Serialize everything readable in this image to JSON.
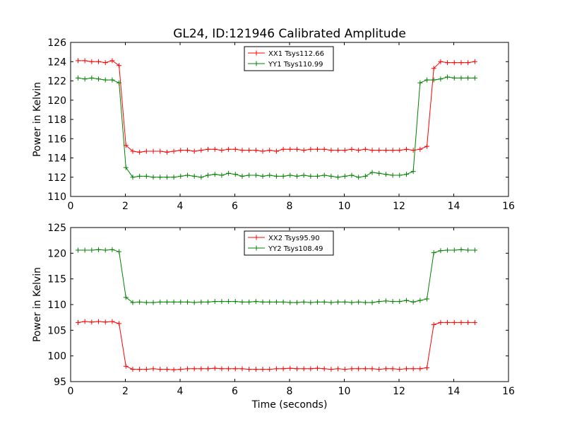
{
  "chart_data": [
    {
      "type": "line",
      "title": "GL24, ID:121946 Calibrated Amplitude",
      "xlabel": "",
      "ylabel": "Power in Kelvin",
      "xlim": [
        0,
        16
      ],
      "ylim": [
        110,
        126
      ],
      "xticks": [
        "0",
        "2",
        "4",
        "6",
        "8",
        "10",
        "12",
        "14",
        "16"
      ],
      "yticks": [
        "110",
        "112",
        "114",
        "116",
        "118",
        "120",
        "122",
        "124",
        "126"
      ],
      "legend_position": "top-center",
      "grid": false,
      "x": [
        0.27,
        0.52,
        0.77,
        1.02,
        1.27,
        1.52,
        1.77,
        2.02,
        2.27,
        2.52,
        2.77,
        3.02,
        3.27,
        3.52,
        3.77,
        4.02,
        4.27,
        4.52,
        4.77,
        5.02,
        5.27,
        5.52,
        5.77,
        6.02,
        6.27,
        6.52,
        6.77,
        7.02,
        7.27,
        7.52,
        7.77,
        8.02,
        8.27,
        8.52,
        8.77,
        9.02,
        9.27,
        9.52,
        9.77,
        10.02,
        10.27,
        10.52,
        10.77,
        11.02,
        11.27,
        11.52,
        11.77,
        12.02,
        12.27,
        12.52,
        12.77,
        13.02,
        13.27,
        13.52,
        13.77,
        14.02,
        14.27,
        14.52,
        14.77
      ],
      "series": [
        {
          "name": "XX1 Tsys112.66",
          "color": "#ff0000",
          "values": [
            124.1,
            124.1,
            124.0,
            124.0,
            123.9,
            124.1,
            123.6,
            115.3,
            114.7,
            114.6,
            114.7,
            114.7,
            114.7,
            114.6,
            114.7,
            114.8,
            114.8,
            114.7,
            114.8,
            114.9,
            114.9,
            114.8,
            114.9,
            114.9,
            114.8,
            114.8,
            114.8,
            114.7,
            114.8,
            114.7,
            114.9,
            114.9,
            114.9,
            114.8,
            114.9,
            114.9,
            114.9,
            114.8,
            114.8,
            114.8,
            114.9,
            114.8,
            114.9,
            114.8,
            114.8,
            114.8,
            114.8,
            114.8,
            114.9,
            114.8,
            114.9,
            115.2,
            123.3,
            124.0,
            123.9,
            123.9,
            123.9,
            123.9,
            124.0
          ]
        },
        {
          "name": "YY1 Tsys110.99",
          "color": "#008000",
          "values": [
            122.3,
            122.2,
            122.3,
            122.2,
            122.1,
            122.1,
            121.8,
            113.0,
            112.0,
            112.1,
            112.1,
            112.0,
            112.0,
            112.0,
            112.0,
            112.1,
            112.2,
            112.1,
            112.0,
            112.2,
            112.3,
            112.2,
            112.4,
            112.3,
            112.1,
            112.2,
            112.2,
            112.1,
            112.2,
            112.1,
            112.1,
            112.2,
            112.1,
            112.2,
            112.1,
            112.1,
            112.2,
            112.1,
            112.0,
            112.1,
            112.2,
            112.0,
            112.1,
            112.5,
            112.4,
            112.3,
            112.2,
            112.2,
            112.3,
            112.6,
            121.8,
            122.1,
            122.1,
            122.2,
            122.4,
            122.3,
            122.3,
            122.3,
            122.3
          ]
        }
      ]
    },
    {
      "type": "line",
      "title": "",
      "xlabel": "Time (seconds)",
      "ylabel": "Power in Kelvin",
      "xlim": [
        0,
        16
      ],
      "ylim": [
        95,
        125
      ],
      "xticks": [
        "0",
        "2",
        "4",
        "6",
        "8",
        "10",
        "12",
        "14",
        "16"
      ],
      "yticks": [
        "95",
        "100",
        "105",
        "110",
        "115",
        "120",
        "125"
      ],
      "legend_position": "top-center",
      "grid": false,
      "x": [
        0.27,
        0.52,
        0.77,
        1.02,
        1.27,
        1.52,
        1.77,
        2.02,
        2.27,
        2.52,
        2.77,
        3.02,
        3.27,
        3.52,
        3.77,
        4.02,
        4.27,
        4.52,
        4.77,
        5.02,
        5.27,
        5.52,
        5.77,
        6.02,
        6.27,
        6.52,
        6.77,
        7.02,
        7.27,
        7.52,
        7.77,
        8.02,
        8.27,
        8.52,
        8.77,
        9.02,
        9.27,
        9.52,
        9.77,
        10.02,
        10.27,
        10.52,
        10.77,
        11.02,
        11.27,
        11.52,
        11.77,
        12.02,
        12.27,
        12.52,
        12.77,
        13.02,
        13.27,
        13.52,
        13.77,
        14.02,
        14.27,
        14.52,
        14.77
      ],
      "series": [
        {
          "name": "XX2 Tsys95.90",
          "color": "#ff0000",
          "values": [
            106.5,
            106.7,
            106.6,
            106.7,
            106.6,
            106.7,
            106.3,
            98.0,
            97.4,
            97.4,
            97.4,
            97.5,
            97.4,
            97.4,
            97.3,
            97.4,
            97.5,
            97.5,
            97.5,
            97.5,
            97.6,
            97.5,
            97.5,
            97.5,
            97.5,
            97.4,
            97.4,
            97.4,
            97.4,
            97.5,
            97.5,
            97.6,
            97.5,
            97.5,
            97.5,
            97.6,
            97.5,
            97.4,
            97.5,
            97.4,
            97.5,
            97.5,
            97.5,
            97.5,
            97.4,
            97.5,
            97.5,
            97.4,
            97.5,
            97.5,
            97.5,
            97.7,
            106.1,
            106.5,
            106.5,
            106.5,
            106.5,
            106.5,
            106.5
          ]
        },
        {
          "name": "YY2 Tsys108.49",
          "color": "#008000",
          "values": [
            120.6,
            120.6,
            120.6,
            120.7,
            120.6,
            120.7,
            120.3,
            111.4,
            110.4,
            110.5,
            110.4,
            110.4,
            110.5,
            110.5,
            110.5,
            110.5,
            110.5,
            110.4,
            110.5,
            110.5,
            110.6,
            110.6,
            110.6,
            110.6,
            110.5,
            110.5,
            110.6,
            110.5,
            110.5,
            110.5,
            110.5,
            110.4,
            110.4,
            110.5,
            110.4,
            110.5,
            110.5,
            110.4,
            110.5,
            110.5,
            110.4,
            110.5,
            110.4,
            110.4,
            110.6,
            110.7,
            110.6,
            110.6,
            110.8,
            110.5,
            110.8,
            111.1,
            120.1,
            120.5,
            120.6,
            120.6,
            120.7,
            120.6,
            120.6
          ]
        }
      ]
    }
  ]
}
